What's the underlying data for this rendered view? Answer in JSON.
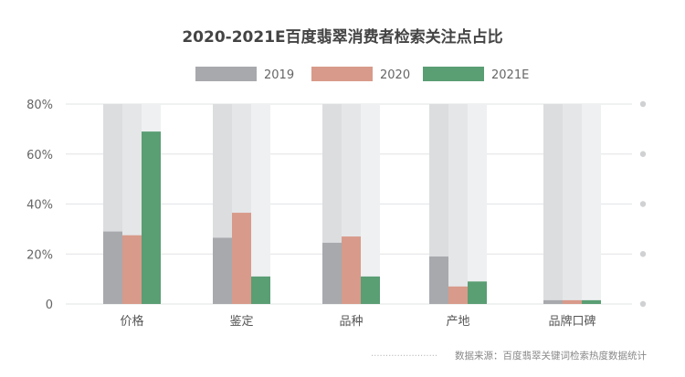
{
  "chart_data": {
    "type": "bar",
    "title": "2020-2021E百度翡翠消费者检索关注点占比",
    "categories": [
      "价格",
      "鉴定",
      "品种",
      "产地",
      "品牌口碑"
    ],
    "series": [
      {
        "name": "2019",
        "values": [
          29,
          26.5,
          24.5,
          19,
          1.5
        ]
      },
      {
        "name": "2020",
        "values": [
          27.5,
          36.5,
          27,
          7,
          1.5
        ]
      },
      {
        "name": "2021E",
        "values": [
          69,
          11,
          11,
          9,
          1.5
        ]
      }
    ],
    "y_tick_labels": [
      "0",
      "20%",
      "40%",
      "60%",
      "80%"
    ],
    "y_ticks": [
      0,
      20,
      40,
      60,
      80
    ],
    "ylim": [
      0,
      80
    ],
    "legend_position": "top-center",
    "grid": true,
    "source": "数据来源：百度翡翠关键词检索热度数据统计"
  },
  "colors": {
    "series": [
      "#a7a9ad",
      "#d89a8a",
      "#5a9e74"
    ],
    "background_bars": [
      "#dcdddf",
      "#e5e6e8",
      "#eef0f1"
    ],
    "grid": "#e2e4e6",
    "axis_text": "#666666",
    "title": "#444444",
    "dots": "#cfd1d3"
  }
}
